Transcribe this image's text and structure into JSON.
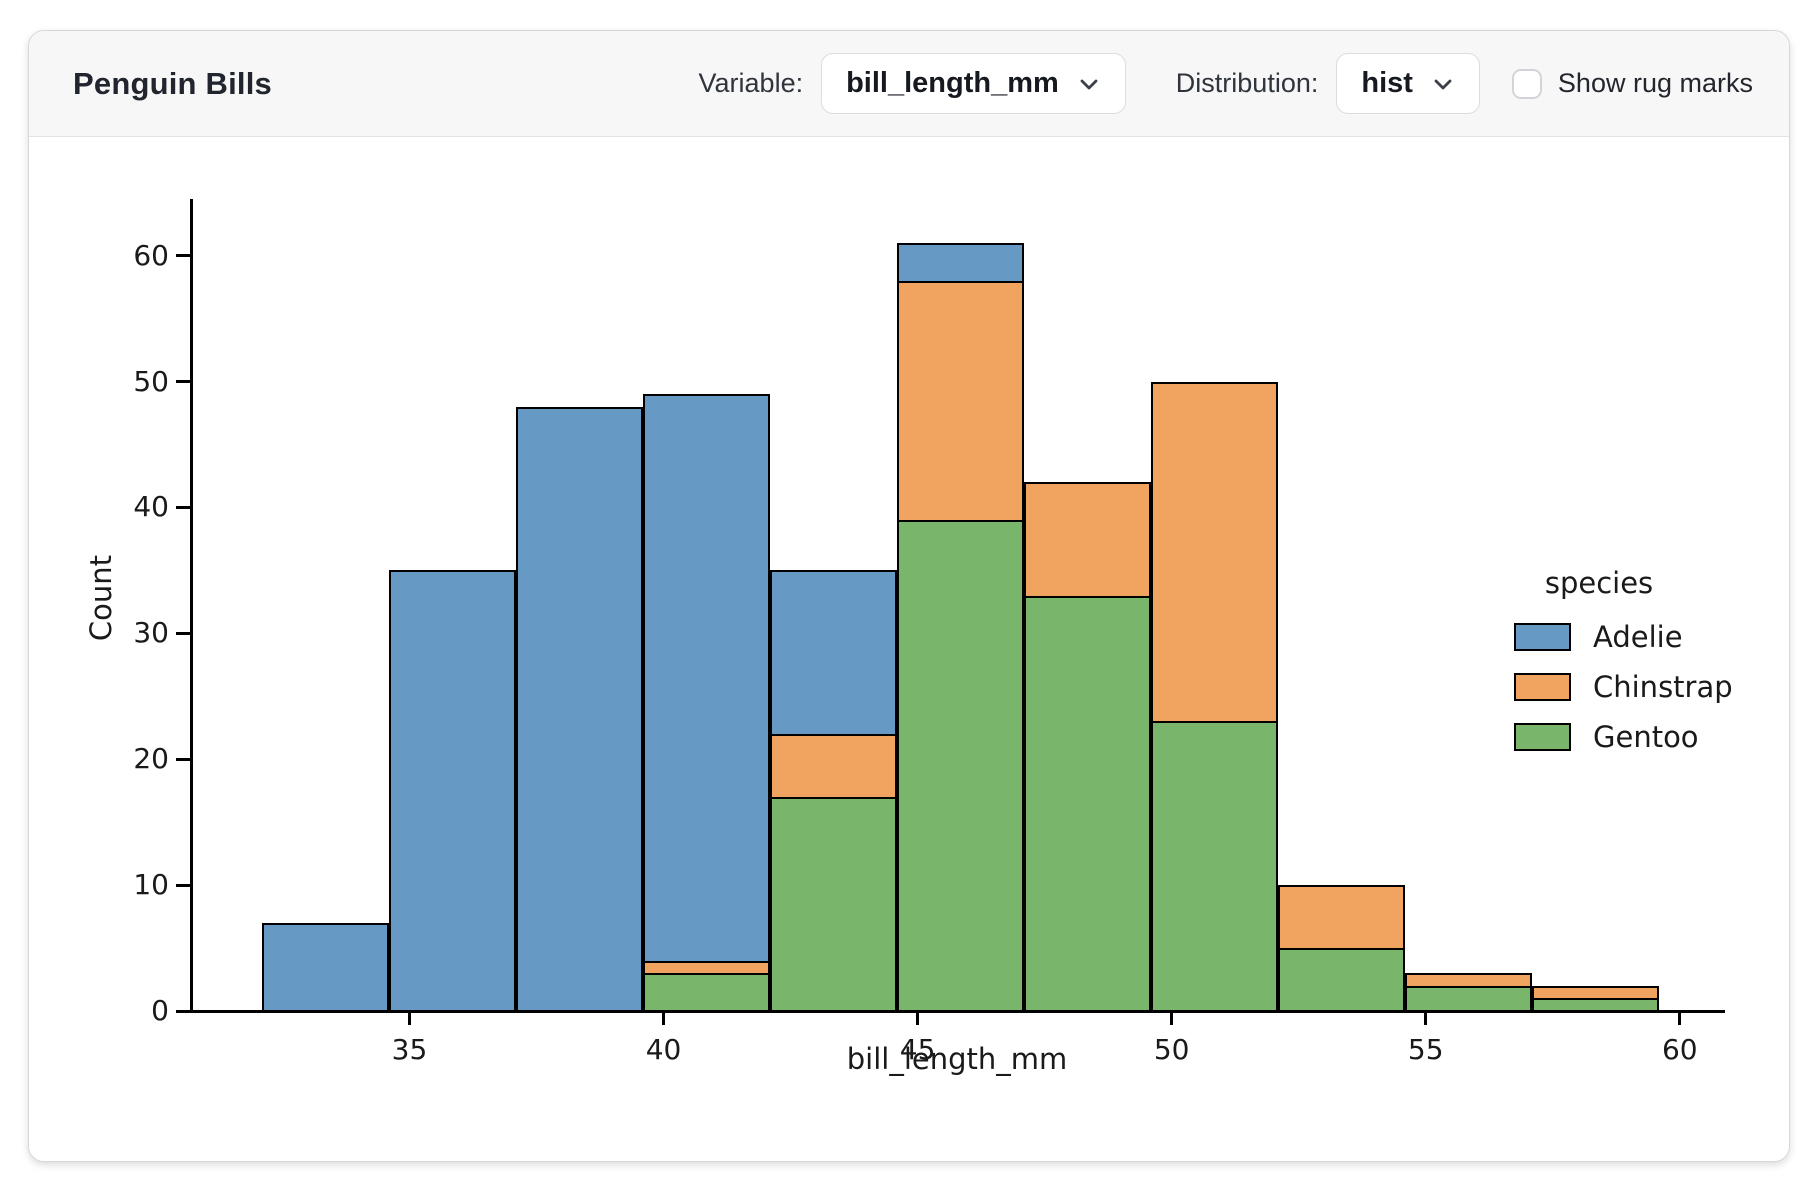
{
  "header": {
    "title": "Penguin Bills",
    "variable_label": "Variable:",
    "variable_value": "bill_length_mm",
    "variable_icon": "chevron-down-icon",
    "distribution_label": "Distribution:",
    "distribution_value": "hist",
    "distribution_icon": "chevron-down-icon",
    "rug_checkbox_label": "Show rug marks",
    "rug_checkbox_checked": false
  },
  "chart_data": {
    "type": "bar",
    "variant": "stacked-histogram",
    "xlabel": "bill_length_mm",
    "ylabel": "Count",
    "bin_edges": [
      32.1,
      34.6,
      37.1,
      39.6,
      42.1,
      44.6,
      47.1,
      49.6,
      52.1,
      54.6,
      57.1,
      59.6
    ],
    "series": [
      {
        "name": "Adelie",
        "color": "#6699c4",
        "values": [
          7,
          35,
          48,
          45,
          13,
          3,
          0,
          0,
          0,
          0,
          0
        ]
      },
      {
        "name": "Chinstrap",
        "color": "#f0a45f",
        "values": [
          0,
          0,
          0,
          1,
          5,
          19,
          9,
          27,
          5,
          1,
          1
        ]
      },
      {
        "name": "Gentoo",
        "color": "#7ab56c",
        "values": [
          0,
          0,
          0,
          3,
          17,
          39,
          33,
          23,
          5,
          2,
          1
        ]
      }
    ],
    "stack_order": [
      "Gentoo",
      "Chinstrap",
      "Adelie"
    ],
    "stack_totals": [
      7,
      35,
      48,
      49,
      35,
      61,
      42,
      50,
      10,
      3,
      2
    ],
    "bar_edge_color": "#000000",
    "x_ticks": [
      35,
      40,
      45,
      50,
      55,
      60
    ],
    "y_ticks": [
      0,
      10,
      20,
      30,
      40,
      50,
      60
    ],
    "xlim": [
      30.7,
      60.85
    ],
    "ylim": [
      0,
      64.5
    ],
    "grid": false,
    "legend": {
      "title": "species",
      "position": "center-right",
      "entries": [
        "Adelie",
        "Chinstrap",
        "Gentoo"
      ]
    }
  }
}
